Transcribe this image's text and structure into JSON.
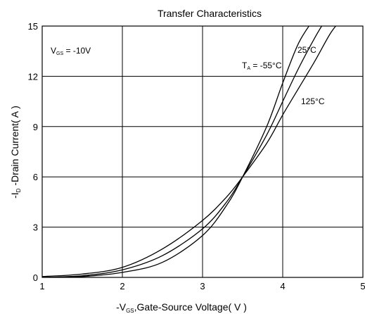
{
  "chart_data": {
    "type": "line",
    "title": "Transfer Characteristics",
    "xlabel": "-V GS, Gate-Source Voltage( V )",
    "xlabel_main": "-V",
    "xlabel_sub": "GS",
    "xlabel_rest": ",Gate-Source Voltage( V )",
    "ylabel": "-I D -Drain Current( A )",
    "ylabel_main": "-I",
    "ylabel_sub": "D",
    "ylabel_rest": " -Drain Current( A )",
    "xlim": [
      1,
      5
    ],
    "ylim": [
      0,
      15
    ],
    "xticks": [
      "1",
      "2",
      "3",
      "4",
      "5"
    ],
    "yticks": [
      "0",
      "3",
      "6",
      "9",
      "12",
      "15"
    ],
    "grid": true,
    "annotation": "V GS = -10V",
    "annotation_main": "V",
    "annotation_sub": "GS",
    "annotation_rest": " = -10V",
    "series": [
      {
        "name": "T A = -55°C",
        "label_main": "T",
        "label_sub": "A",
        "label_rest": " = -55°C",
        "x": [
          1.0,
          1.5,
          2.0,
          2.5,
          3.0,
          3.3,
          3.5,
          3.8,
          4.0,
          4.2,
          4.4
        ],
        "y": [
          0.0,
          0.05,
          0.3,
          0.9,
          2.5,
          4.3,
          6.0,
          9.0,
          11.6,
          14.0,
          15.5
        ]
      },
      {
        "name": "25°C",
        "label_main": "25°C",
        "x": [
          1.0,
          1.5,
          2.0,
          2.5,
          3.0,
          3.3,
          3.5,
          3.8,
          4.0,
          4.2,
          4.4,
          4.55
        ],
        "y": [
          0.0,
          0.1,
          0.45,
          1.3,
          2.9,
          4.5,
          6.0,
          8.5,
          10.5,
          12.5,
          14.3,
          15.5
        ]
      },
      {
        "name": "125°C",
        "label_main": "125°C",
        "x": [
          1.0,
          1.5,
          2.0,
          2.5,
          3.0,
          3.3,
          3.5,
          3.8,
          4.0,
          4.2,
          4.4,
          4.6,
          4.75
        ],
        "y": [
          0.05,
          0.2,
          0.6,
          1.7,
          3.4,
          4.8,
          6.0,
          8.0,
          9.7,
          11.3,
          12.9,
          14.6,
          15.5
        ]
      }
    ]
  }
}
